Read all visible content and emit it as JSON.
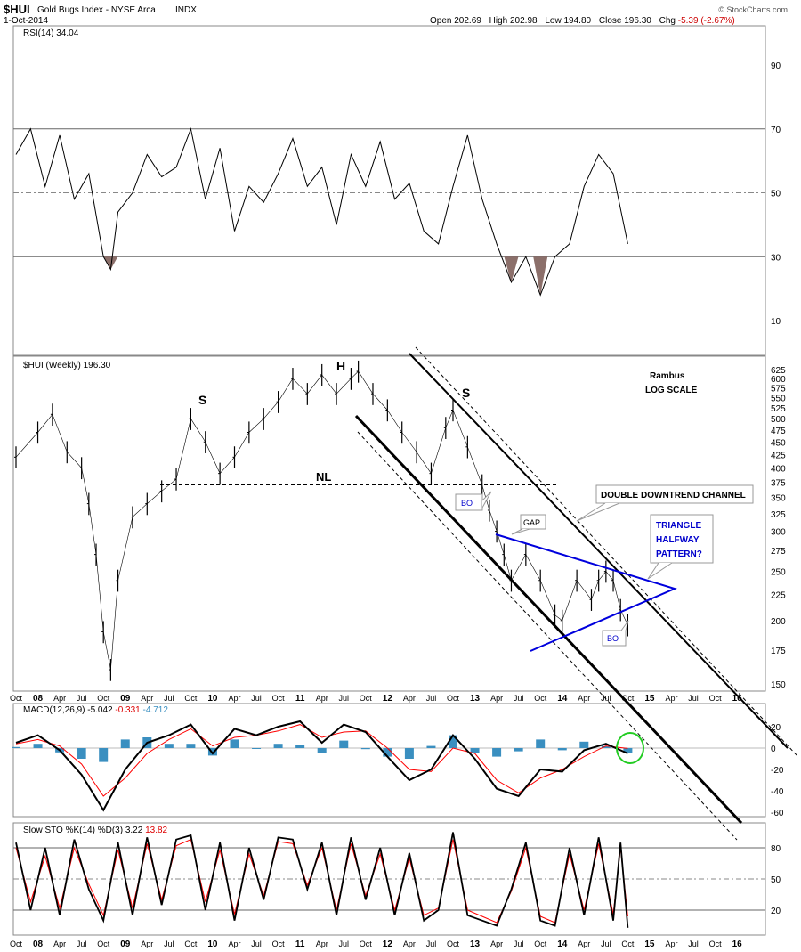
{
  "header": {
    "symbol": "$HUI",
    "name": "Gold Bugs Index - NYSE Arca",
    "suffix": "INDX",
    "date": "1-Oct-2014",
    "watermark": "© StockCharts.com",
    "quote": {
      "open_label": "Open",
      "open": "202.69",
      "high_label": "High",
      "high": "202.98",
      "low_label": "Low",
      "low": "194.80",
      "close_label": "Close",
      "close": "196.30",
      "chg_label": "Chg",
      "chg": "-5.39 (-2.67%)",
      "chg_color": "#cc0000"
    }
  },
  "colors": {
    "price": "#000000",
    "signal": "#ff0000",
    "histogram": "#3a8fc0",
    "triangle": "#0000dd",
    "rsi_fill": "#8b6f6a",
    "highlight_circle": "#22cc22"
  },
  "time_axis": {
    "labels": [
      "Oct",
      "08",
      "Apr",
      "Jul",
      "Oct",
      "09",
      "Apr",
      "Jul",
      "Oct",
      "10",
      "Apr",
      "Jul",
      "Oct",
      "11",
      "Apr",
      "Jul",
      "Oct",
      "12",
      "Apr",
      "Jul",
      "Oct",
      "13",
      "Apr",
      "Jul",
      "Oct",
      "14",
      "Apr",
      "Jul",
      "Oct",
      "15",
      "Apr",
      "Jul",
      "Oct",
      "16"
    ],
    "bold": [
      "08",
      "09",
      "10",
      "11",
      "12",
      "13",
      "14",
      "15",
      "16"
    ]
  },
  "chart_data": [
    {
      "panel": "rsi",
      "type": "line",
      "title": "RSI(14) 34.04",
      "ylim": [
        0,
        100
      ],
      "yticks": [
        10,
        30,
        50,
        70,
        90
      ],
      "overbought": 70,
      "oversold": 30,
      "midline": 50,
      "x": [
        "2007-10",
        "2007-12",
        "2008-02",
        "2008-04",
        "2008-06",
        "2008-08",
        "2008-10",
        "2008-11",
        "2008-12",
        "2009-02",
        "2009-04",
        "2009-06",
        "2009-08",
        "2009-10",
        "2009-12",
        "2010-02",
        "2010-04",
        "2010-06",
        "2010-08",
        "2010-10",
        "2010-12",
        "2011-02",
        "2011-04",
        "2011-06",
        "2011-08",
        "2011-10",
        "2011-12",
        "2012-02",
        "2012-04",
        "2012-06",
        "2012-08",
        "2012-10",
        "2012-12",
        "2013-02",
        "2013-04",
        "2013-06",
        "2013-08",
        "2013-10",
        "2013-12",
        "2014-02",
        "2014-04",
        "2014-06",
        "2014-08",
        "2014-09",
        "2014-10"
      ],
      "values": [
        62,
        70,
        52,
        68,
        48,
        56,
        30,
        26,
        44,
        50,
        62,
        55,
        58,
        70,
        48,
        64,
        38,
        52,
        47,
        56,
        67,
        52,
        58,
        40,
        62,
        52,
        66,
        48,
        53,
        38,
        34,
        52,
        68,
        48,
        34,
        22,
        30,
        18,
        30,
        34,
        52,
        62,
        56,
        45,
        34
      ]
    },
    {
      "panel": "price",
      "type": "bar",
      "title": "$HUI (Weekly) 196.30",
      "scale": "log",
      "ylim": [
        145,
        640
      ],
      "yticks": [
        150,
        175,
        200,
        225,
        250,
        275,
        300,
        325,
        350,
        375,
        400,
        425,
        450,
        475,
        500,
        525,
        550,
        575,
        600,
        625
      ],
      "x": [
        "2007-10",
        "2008-01",
        "2008-03",
        "2008-05",
        "2008-07",
        "2008-08",
        "2008-09",
        "2008-10",
        "2008-11",
        "2008-12",
        "2009-02",
        "2009-04",
        "2009-06",
        "2009-08",
        "2009-10",
        "2009-12",
        "2010-02",
        "2010-04",
        "2010-06",
        "2010-08",
        "2010-10",
        "2010-12",
        "2011-02",
        "2011-04",
        "2011-06",
        "2011-08",
        "2011-09",
        "2011-11",
        "2012-01",
        "2012-03",
        "2012-05",
        "2012-07",
        "2012-09",
        "2012-10",
        "2012-12",
        "2013-02",
        "2013-03",
        "2013-04",
        "2013-05",
        "2013-06",
        "2013-08",
        "2013-10",
        "2013-12",
        "2014-01",
        "2014-03",
        "2014-05",
        "2014-06",
        "2014-07",
        "2014-08",
        "2014-09",
        "2014-10"
      ],
      "values": [
        420,
        470,
        510,
        430,
        400,
        340,
        270,
        190,
        160,
        240,
        320,
        340,
        360,
        380,
        500,
        450,
        390,
        420,
        470,
        500,
        540,
        600,
        560,
        610,
        560,
        600,
        620,
        560,
        520,
        470,
        430,
        390,
        480,
        520,
        440,
        370,
        330,
        300,
        270,
        240,
        270,
        240,
        205,
        200,
        240,
        220,
        240,
        250,
        240,
        210,
        196
      ],
      "annotations": {
        "left_shoulder": "S",
        "head": "H",
        "right_shoulder": "S",
        "neckline": "NL",
        "neckline_value": 375,
        "breakout_1": "BO",
        "gap": "GAP",
        "breakout_2": "BO",
        "channel_label": "DOUBLE DOWNTREND CHANNEL",
        "triangle_label": [
          "TRIANGLE",
          "HALFWAY",
          "PATTERN?"
        ],
        "author": "Rambus",
        "scale_note": "LOG SCALE"
      }
    },
    {
      "panel": "macd",
      "type": "line",
      "title_prefix": "MACD(12,26,9) ",
      "title_macd": "-5.042",
      "title_signal": "-0.331",
      "title_hist": "-4.712",
      "ylim": [
        -65,
        28
      ],
      "yticks": [
        -60,
        -40,
        -20,
        0,
        20
      ],
      "x": [
        "2007-10",
        "2008-01",
        "2008-04",
        "2008-07",
        "2008-10",
        "2009-01",
        "2009-04",
        "2009-07",
        "2009-10",
        "2010-01",
        "2010-04",
        "2010-07",
        "2010-10",
        "2011-01",
        "2011-04",
        "2011-07",
        "2011-10",
        "2012-01",
        "2012-04",
        "2012-07",
        "2012-10",
        "2013-01",
        "2013-04",
        "2013-07",
        "2013-10",
        "2014-01",
        "2014-04",
        "2014-07",
        "2014-10"
      ],
      "series": [
        {
          "name": "MACD",
          "values": [
            5,
            12,
            -2,
            -25,
            -58,
            -20,
            5,
            12,
            22,
            -5,
            18,
            12,
            20,
            25,
            5,
            22,
            15,
            -8,
            -30,
            -20,
            12,
            -10,
            -38,
            -45,
            -20,
            -22,
            -2,
            4,
            -5
          ]
        },
        {
          "name": "Signal",
          "values": [
            4,
            8,
            2,
            -15,
            -45,
            -28,
            -5,
            8,
            18,
            2,
            10,
            12,
            16,
            22,
            10,
            15,
            16,
            0,
            -20,
            -22,
            0,
            -5,
            -30,
            -42,
            -28,
            -20,
            -8,
            2,
            -0.3
          ]
        },
        {
          "name": "Histogram",
          "values": [
            1,
            4,
            -4,
            -10,
            -13,
            8,
            10,
            4,
            4,
            -7,
            8,
            0,
            4,
            3,
            -5,
            7,
            -1,
            -8,
            -10,
            2,
            12,
            -5,
            -8,
            -3,
            8,
            -2,
            6,
            2,
            -4.7
          ]
        }
      ]
    },
    {
      "panel": "stochastic",
      "type": "line",
      "title_prefix": "Slow STO %K(14) %D(3) ",
      "title_k": "3.22",
      "title_d": "13.82",
      "ylim": [
        0,
        100
      ],
      "yticks": [
        20,
        50,
        80
      ],
      "x": [
        "2007-10",
        "2007-12",
        "2008-02",
        "2008-04",
        "2008-06",
        "2008-08",
        "2008-10",
        "2008-12",
        "2009-02",
        "2009-04",
        "2009-06",
        "2009-08",
        "2009-10",
        "2009-12",
        "2010-02",
        "2010-04",
        "2010-06",
        "2010-08",
        "2010-10",
        "2010-12",
        "2011-02",
        "2011-04",
        "2011-06",
        "2011-08",
        "2011-10",
        "2011-12",
        "2012-02",
        "2012-04",
        "2012-06",
        "2012-08",
        "2012-10",
        "2012-12",
        "2013-02",
        "2013-04",
        "2013-06",
        "2013-08",
        "2013-10",
        "2013-12",
        "2014-02",
        "2014-04",
        "2014-06",
        "2014-08",
        "2014-09",
        "2014-10"
      ],
      "series": [
        {
          "name": "%K",
          "values": [
            85,
            20,
            80,
            15,
            88,
            40,
            10,
            85,
            15,
            90,
            25,
            88,
            92,
            20,
            85,
            10,
            80,
            30,
            90,
            88,
            40,
            85,
            15,
            90,
            30,
            80,
            15,
            75,
            10,
            20,
            95,
            15,
            10,
            5,
            40,
            85,
            10,
            5,
            80,
            15,
            90,
            10,
            85,
            3
          ]
        },
        {
          "name": "%D",
          "values": [
            80,
            28,
            72,
            22,
            80,
            45,
            15,
            78,
            22,
            84,
            30,
            82,
            88,
            28,
            78,
            16,
            74,
            34,
            86,
            84,
            44,
            80,
            20,
            84,
            34,
            74,
            20,
            70,
            15,
            22,
            88,
            20,
            14,
            8,
            38,
            80,
            14,
            8,
            74,
            20,
            84,
            16,
            80,
            14
          ]
        }
      ]
    }
  ]
}
